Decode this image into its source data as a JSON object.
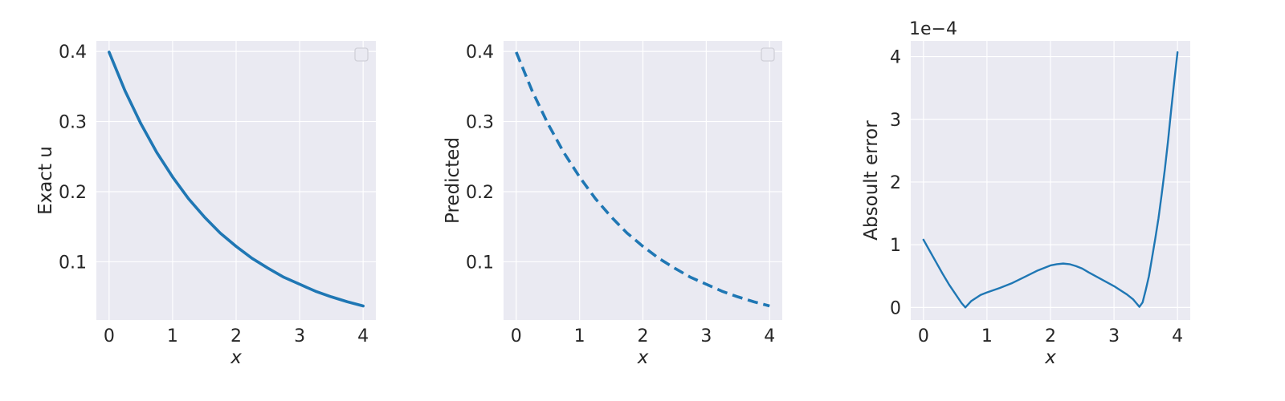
{
  "chart_data": [
    {
      "type": "line",
      "xlabel": "x",
      "ylabel": "Exact u",
      "xlim": [
        -0.2,
        4.2
      ],
      "ylim": [
        0.017,
        0.415
      ],
      "xticks": [
        "0",
        "1",
        "2",
        "3",
        "4"
      ],
      "yticks": [
        "0.1",
        "0.2",
        "0.3",
        "0.4"
      ],
      "grid": true,
      "legend": "top-right (empty)",
      "series": [
        {
          "line_style": "solid",
          "color": "#1f77b4",
          "x": [
            0,
            0.25,
            0.5,
            0.75,
            1,
            1.25,
            1.5,
            1.75,
            2,
            2.25,
            2.5,
            2.75,
            3,
            3.25,
            3.5,
            3.75,
            4
          ],
          "y": [
            0.399,
            0.344,
            0.297,
            0.256,
            0.221,
            0.19,
            0.164,
            0.141,
            0.122,
            0.105,
            0.091,
            0.078,
            0.068,
            0.058,
            0.05,
            0.043,
            0.037
          ]
        }
      ]
    },
    {
      "type": "line",
      "xlabel": "x",
      "ylabel": "Predicted",
      "xlim": [
        -0.2,
        4.2
      ],
      "ylim": [
        0.017,
        0.415
      ],
      "xticks": [
        "0",
        "1",
        "2",
        "3",
        "4"
      ],
      "yticks": [
        "0.1",
        "0.2",
        "0.3",
        "0.4"
      ],
      "grid": true,
      "legend": "top-right (empty)",
      "series": [
        {
          "line_style": "dashed",
          "color": "#1f77b4",
          "x": [
            0,
            0.25,
            0.5,
            0.75,
            1,
            1.25,
            1.5,
            1.75,
            2,
            2.25,
            2.5,
            2.75,
            3,
            3.25,
            3.5,
            3.75,
            4
          ],
          "y": [
            0.399,
            0.344,
            0.297,
            0.256,
            0.221,
            0.19,
            0.164,
            0.141,
            0.122,
            0.105,
            0.091,
            0.078,
            0.068,
            0.058,
            0.05,
            0.043,
            0.037
          ]
        }
      ]
    },
    {
      "type": "line",
      "xlabel": "x",
      "ylabel": "Absoult error",
      "offset_text": "1e−4",
      "xlim": [
        -0.2,
        4.2
      ],
      "ylim": [
        -0.2,
        4.25
      ],
      "xticks": [
        "0",
        "1",
        "2",
        "3",
        "4"
      ],
      "yticks": [
        "0",
        "1",
        "2",
        "3",
        "4"
      ],
      "grid": true,
      "series": [
        {
          "line_style": "solid",
          "color": "#1f77b4",
          "x": [
            0,
            0.1,
            0.2,
            0.3,
            0.4,
            0.5,
            0.6,
            0.66,
            0.75,
            0.9,
            1.0,
            1.2,
            1.4,
            1.6,
            1.8,
            2.0,
            2.1,
            2.2,
            2.3,
            2.4,
            2.5,
            2.6,
            2.8,
            3.0,
            3.2,
            3.3,
            3.35,
            3.4,
            3.45,
            3.5,
            3.55,
            3.6,
            3.65,
            3.7,
            3.75,
            3.8,
            3.85,
            3.9,
            3.95,
            4.0
          ],
          "y": [
            1.08,
            0.9,
            0.72,
            0.54,
            0.37,
            0.22,
            0.07,
            0.0,
            0.1,
            0.2,
            0.24,
            0.31,
            0.39,
            0.49,
            0.59,
            0.67,
            0.69,
            0.7,
            0.69,
            0.66,
            0.62,
            0.56,
            0.45,
            0.34,
            0.21,
            0.13,
            0.07,
            0.01,
            0.08,
            0.28,
            0.5,
            0.8,
            1.1,
            1.42,
            1.8,
            2.2,
            2.65,
            3.15,
            3.62,
            4.07
          ]
        }
      ]
    }
  ]
}
